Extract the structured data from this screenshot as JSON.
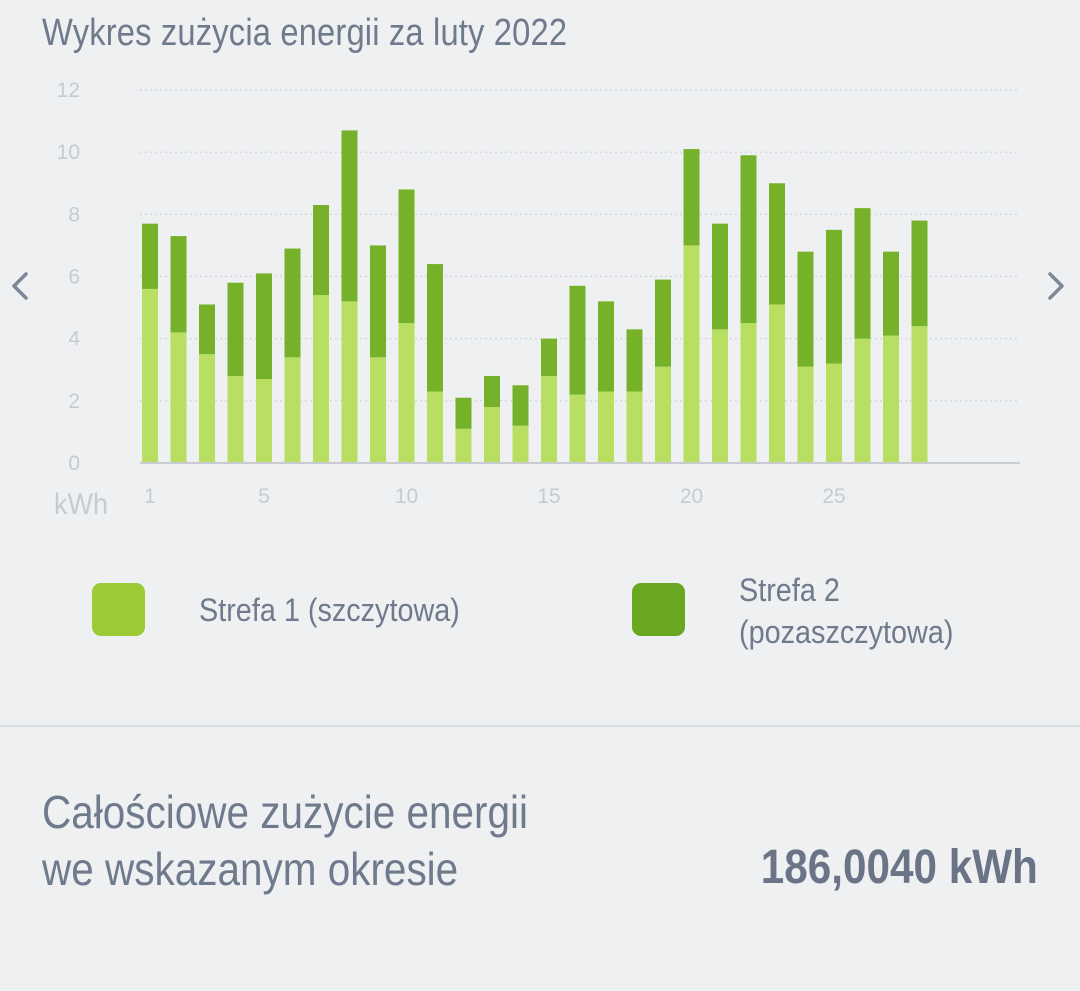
{
  "chart_data": {
    "type": "bar",
    "stacked": true,
    "title": "Wykres zużycia energii za luty 2022",
    "ylabel": "kWh",
    "ylim": [
      0,
      12
    ],
    "yticks": [
      0,
      2,
      4,
      6,
      8,
      10,
      12
    ],
    "xticks": [
      1,
      5,
      10,
      15,
      20,
      25
    ],
    "x": [
      1,
      2,
      3,
      4,
      5,
      6,
      7,
      8,
      9,
      10,
      11,
      12,
      13,
      14,
      15,
      16,
      17,
      18,
      19,
      20,
      21,
      22,
      23,
      24,
      25,
      26,
      27,
      28
    ],
    "grid": true,
    "series": [
      {
        "name": "Strefa 1 (szczytowa)",
        "color": "#9ccb37",
        "values": [
          5.6,
          4.2,
          3.5,
          2.8,
          2.7,
          3.4,
          5.4,
          5.2,
          3.4,
          4.5,
          2.3,
          1.1,
          1.8,
          1.2,
          2.8,
          2.2,
          2.3,
          2.3,
          3.1,
          7.0,
          4.3,
          4.5,
          5.1,
          3.1,
          3.2,
          4.0,
          4.1,
          4.4
        ],
        "fill": "#b8de62"
      },
      {
        "name": "Strefa 2 (pozaszczytowa)",
        "color": "#6aa721",
        "values": [
          2.1,
          3.1,
          1.6,
          3.0,
          3.4,
          3.5,
          2.9,
          5.5,
          3.6,
          4.3,
          4.1,
          1.0,
          1.0,
          1.3,
          1.2,
          3.5,
          2.9,
          2.0,
          2.8,
          3.1,
          3.4,
          5.4,
          3.9,
          3.7,
          4.3,
          4.2,
          2.7,
          3.4
        ],
        "fill": "#75b22a"
      }
    ]
  },
  "legend": {
    "item1": "Strefa 1 (szczytowa)",
    "item2": "Strefa 2 (pozaszczytowa)"
  },
  "navigation": {
    "prev_icon": "chevron-left-icon",
    "next_icon": "chevron-right-icon"
  },
  "summary": {
    "label": "Całościowe zużycie energii we wskazanym okresie",
    "value": "186,0040 kWh"
  }
}
